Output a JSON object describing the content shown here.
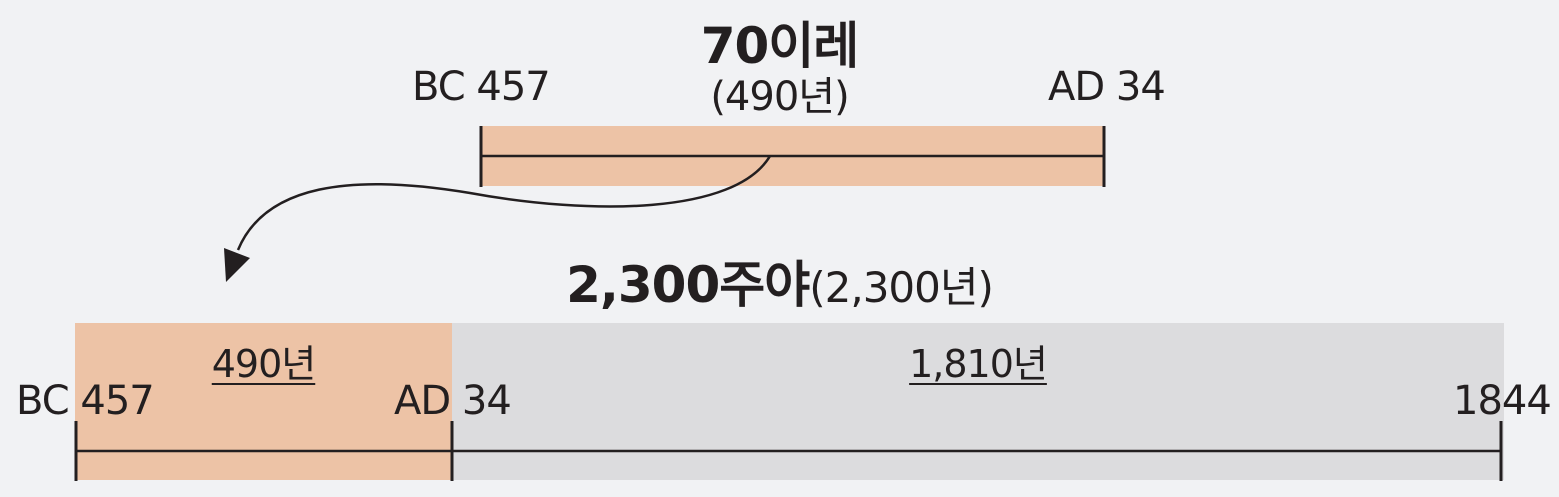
{
  "top": {
    "title": "70이레",
    "subtitle": "(490년)",
    "start_label": "BC 457",
    "end_label": "AD 34"
  },
  "bottom": {
    "title_bold": "2,300주야",
    "title_normal": "(2,300년)",
    "segment1_label": "490년",
    "segment2_label": "1,810년",
    "start_label": "BC 457",
    "mid_label": "AD 34",
    "end_label": "1844"
  },
  "colors": {
    "background": "#f1f2f4",
    "peach": "#edc3a6",
    "gray": "#dcdcde",
    "ink": "#231f20"
  }
}
